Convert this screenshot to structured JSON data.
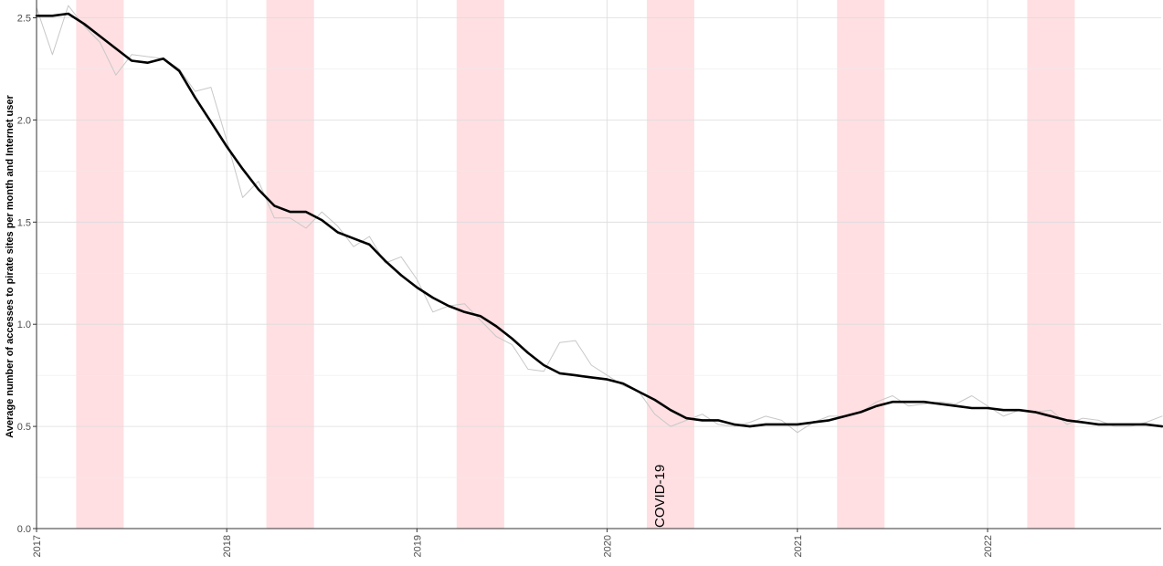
{
  "chart_data": {
    "type": "line",
    "title": "",
    "xlabel": "",
    "ylabel": "Average number of accesses to pirate sites per month and Internet user",
    "x_ticks": [
      "2017",
      "2018",
      "2019",
      "2020",
      "2021",
      "2022"
    ],
    "y_ticks": [
      "0.0",
      "0.5",
      "1.0",
      "1.5",
      "2.0",
      "2.5"
    ],
    "ylim": [
      0,
      2.55
    ],
    "xlim": [
      "2017-01",
      "2022-12"
    ],
    "grid": true,
    "legend": "none",
    "highlight_periods": [
      {
        "start": "2017-04",
        "end": "2017-06"
      },
      {
        "start": "2018-04",
        "end": "2018-06"
      },
      {
        "start": "2019-04",
        "end": "2019-06"
      },
      {
        "start": "2020-04",
        "end": "2020-06"
      },
      {
        "start": "2021-04",
        "end": "2021-06"
      },
      {
        "start": "2022-04",
        "end": "2022-06"
      }
    ],
    "annotations": [
      {
        "x": "2020-04",
        "text": "COVID-19"
      }
    ],
    "colors": {
      "trend": "#000000",
      "raw": "#c8c8c8",
      "highlight": "#ffdfe2",
      "grid": "#dcdcdc"
    },
    "series": [
      {
        "role": "raw-monthly",
        "x": [
          "2017-01",
          "2017-02",
          "2017-03",
          "2017-04",
          "2017-05",
          "2017-06",
          "2017-07",
          "2017-08",
          "2017-09",
          "2017-10",
          "2017-11",
          "2017-12",
          "2018-01",
          "2018-02",
          "2018-03",
          "2018-04",
          "2018-05",
          "2018-06",
          "2018-07",
          "2018-08",
          "2018-09",
          "2018-10",
          "2018-11",
          "2018-12",
          "2019-01",
          "2019-02",
          "2019-03",
          "2019-04",
          "2019-05",
          "2019-06",
          "2019-07",
          "2019-08",
          "2019-09",
          "2019-10",
          "2019-11",
          "2019-12",
          "2020-01",
          "2020-02",
          "2020-03",
          "2020-04",
          "2020-05",
          "2020-06",
          "2020-07",
          "2020-08",
          "2020-09",
          "2020-10",
          "2020-11",
          "2020-12",
          "2021-01",
          "2021-02",
          "2021-03",
          "2021-04",
          "2021-05",
          "2021-06",
          "2021-07",
          "2021-08",
          "2021-09",
          "2021-10",
          "2021-11",
          "2021-12",
          "2022-01",
          "2022-02",
          "2022-03",
          "2022-04",
          "2022-05",
          "2022-06",
          "2022-07",
          "2022-08",
          "2022-09",
          "2022-10",
          "2022-11",
          "2022-12"
        ],
        "values": [
          2.55,
          2.32,
          2.56,
          2.46,
          2.38,
          2.22,
          2.32,
          2.31,
          2.3,
          2.25,
          2.14,
          2.16,
          1.9,
          1.62,
          1.7,
          1.52,
          1.52,
          1.47,
          1.55,
          1.48,
          1.38,
          1.43,
          1.3,
          1.33,
          1.22,
          1.06,
          1.09,
          1.1,
          1.02,
          0.94,
          0.9,
          0.78,
          0.77,
          0.91,
          0.92,
          0.8,
          0.75,
          0.7,
          0.67,
          0.56,
          0.5,
          0.53,
          0.56,
          0.51,
          0.5,
          0.52,
          0.55,
          0.53,
          0.47,
          0.52,
          0.55,
          0.55,
          0.57,
          0.62,
          0.65,
          0.6,
          0.61,
          0.62,
          0.61,
          0.65,
          0.6,
          0.55,
          0.58,
          0.57,
          0.58,
          0.51,
          0.54,
          0.53,
          0.5,
          0.5,
          0.52,
          0.55
        ]
      },
      {
        "role": "trend",
        "x": [
          "2017-01",
          "2017-02",
          "2017-03",
          "2017-04",
          "2017-05",
          "2017-06",
          "2017-07",
          "2017-08",
          "2017-09",
          "2017-10",
          "2017-11",
          "2017-12",
          "2018-01",
          "2018-02",
          "2018-03",
          "2018-04",
          "2018-05",
          "2018-06",
          "2018-07",
          "2018-08",
          "2018-09",
          "2018-10",
          "2018-11",
          "2018-12",
          "2019-01",
          "2019-02",
          "2019-03",
          "2019-04",
          "2019-05",
          "2019-06",
          "2019-07",
          "2019-08",
          "2019-09",
          "2019-10",
          "2019-11",
          "2019-12",
          "2020-01",
          "2020-02",
          "2020-03",
          "2020-04",
          "2020-05",
          "2020-06",
          "2020-07",
          "2020-08",
          "2020-09",
          "2020-10",
          "2020-11",
          "2020-12",
          "2021-01",
          "2021-02",
          "2021-03",
          "2021-04",
          "2021-05",
          "2021-06",
          "2021-07",
          "2021-08",
          "2021-09",
          "2021-10",
          "2021-11",
          "2021-12",
          "2022-01",
          "2022-02",
          "2022-03",
          "2022-04",
          "2022-05",
          "2022-06",
          "2022-07",
          "2022-08",
          "2022-09",
          "2022-10",
          "2022-11",
          "2022-12"
        ],
        "values": [
          2.51,
          2.51,
          2.52,
          2.47,
          2.41,
          2.35,
          2.29,
          2.28,
          2.3,
          2.24,
          2.11,
          1.99,
          1.87,
          1.76,
          1.66,
          1.58,
          1.55,
          1.55,
          1.51,
          1.45,
          1.42,
          1.39,
          1.31,
          1.24,
          1.18,
          1.13,
          1.09,
          1.06,
          1.04,
          0.99,
          0.93,
          0.86,
          0.8,
          0.76,
          0.75,
          0.74,
          0.73,
          0.71,
          0.67,
          0.63,
          0.58,
          0.54,
          0.53,
          0.53,
          0.51,
          0.5,
          0.51,
          0.51,
          0.51,
          0.52,
          0.53,
          0.55,
          0.57,
          0.6,
          0.62,
          0.62,
          0.62,
          0.61,
          0.6,
          0.59,
          0.59,
          0.58,
          0.58,
          0.57,
          0.55,
          0.53,
          0.52,
          0.51,
          0.51,
          0.51,
          0.51,
          0.5
        ]
      }
    ]
  }
}
